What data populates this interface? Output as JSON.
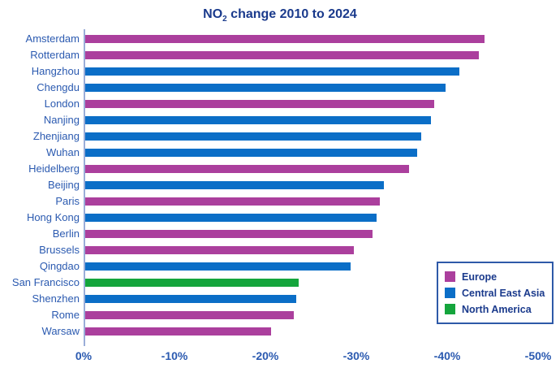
{
  "title": {
    "text_prefix": "NO",
    "subscript": "2",
    "text_suffix": " change 2010 to 2024"
  },
  "colors": {
    "europe": "#ab3f9d",
    "central_east_asia": "#0b6ec7",
    "north_america": "#14a53c",
    "title_text": "#1a3a8c",
    "axis_text": "#2b5ab0",
    "axis_line": "#9aadd8",
    "legend_border": "#2e59a8",
    "background": "#ffffff"
  },
  "chart_data": {
    "type": "bar",
    "orientation": "horizontal",
    "title": "NO2 change 2010 to 2024",
    "xlabel": "",
    "ylabel": "",
    "xlim": [
      0,
      -50
    ],
    "x_ticks": [
      "0%",
      "-10%",
      "-20%",
      "-30%",
      "-40%",
      "-50%"
    ],
    "grid": false,
    "categories": [
      "Amsterdam",
      "Rotterdam",
      "Hangzhou",
      "Chengdu",
      "London",
      "Nanjing",
      "Zhenjiang",
      "Wuhan",
      "Heidelberg",
      "Beijing",
      "Paris",
      "Hong Kong",
      "Berlin",
      "Brussels",
      "Qingdao",
      "San Francisco",
      "Shenzhen",
      "Rome",
      "Warsaw"
    ],
    "values": [
      -44.1,
      -43.5,
      -41.3,
      -39.8,
      -38.6,
      -38.2,
      -37.1,
      -36.7,
      -35.8,
      -33.0,
      -32.6,
      -32.2,
      -31.8,
      -29.7,
      -29.4,
      -23.7,
      -23.4,
      -23.1,
      -20.6
    ],
    "regions": [
      "Europe",
      "Europe",
      "Central East Asia",
      "Central East Asia",
      "Europe",
      "Central East Asia",
      "Central East Asia",
      "Central East Asia",
      "Europe",
      "Central East Asia",
      "Europe",
      "Central East Asia",
      "Europe",
      "Europe",
      "Central East Asia",
      "North America",
      "Central East Asia",
      "Europe",
      "Europe"
    ],
    "legend": {
      "position": "right-lower",
      "entries": [
        {
          "label": "Europe",
          "region_key": "europe"
        },
        {
          "label": "Central East Asia",
          "region_key": "central_east_asia"
        },
        {
          "label": "North America",
          "region_key": "north_america"
        }
      ]
    }
  }
}
